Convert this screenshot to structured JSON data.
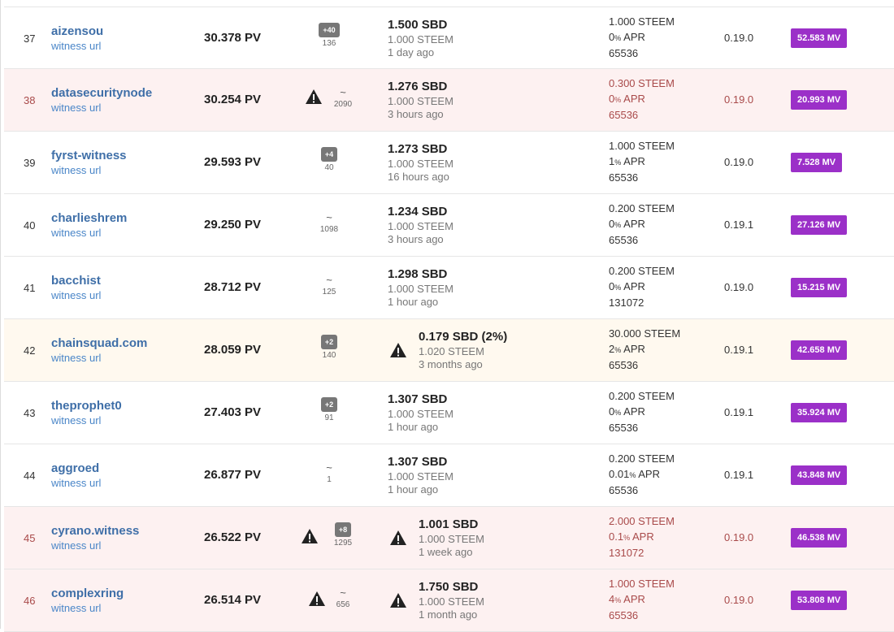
{
  "labels": {
    "witness_url": "witness url",
    "apr": "APR",
    "pct": "%"
  },
  "rows": [
    {
      "rank": "37",
      "name": "aizensou",
      "votes": "30.378 PV",
      "missed_badge": "+40",
      "missed_tilde": "",
      "missed_count": "136",
      "price": "1.500 SBD",
      "price_sub": "1.000 STEEM",
      "price_time": "1 day ago",
      "fee_steem": "1.000 STEEM",
      "apr": "0",
      "block_size": "65536",
      "version": "0.19.0",
      "mvests": "52.583 MV"
    },
    {
      "rank": "38",
      "name": "datasecuritynode",
      "votes": "30.254 PV",
      "missed_badge": "",
      "missed_tilde": "~",
      "missed_count": "2090",
      "price": "1.276 SBD",
      "price_sub": "1.000 STEEM",
      "price_time": "3 hours ago",
      "fee_steem": "0.300 STEEM",
      "apr": "0",
      "block_size": "65536",
      "version": "0.19.0",
      "mvests": "20.993 MV"
    },
    {
      "rank": "39",
      "name": "fyrst-witness",
      "votes": "29.593 PV",
      "missed_badge": "+4",
      "missed_tilde": "",
      "missed_count": "40",
      "price": "1.273 SBD",
      "price_sub": "1.000 STEEM",
      "price_time": "16 hours ago",
      "fee_steem": "1.000 STEEM",
      "apr": "1",
      "block_size": "65536",
      "version": "0.19.0",
      "mvests": "7.528 MV"
    },
    {
      "rank": "40",
      "name": "charlieshrem",
      "votes": "29.250 PV",
      "missed_badge": "",
      "missed_tilde": "~",
      "missed_count": "1098",
      "price": "1.234 SBD",
      "price_sub": "1.000 STEEM",
      "price_time": "3 hours ago",
      "fee_steem": "0.200 STEEM",
      "apr": "0",
      "block_size": "65536",
      "version": "0.19.1",
      "mvests": "27.126 MV"
    },
    {
      "rank": "41",
      "name": "bacchist",
      "votes": "28.712 PV",
      "missed_badge": "",
      "missed_tilde": "~",
      "missed_count": "125",
      "price": "1.298 SBD",
      "price_sub": "1.000 STEEM",
      "price_time": "1 hour ago",
      "fee_steem": "0.200 STEEM",
      "apr": "0",
      "block_size": "131072",
      "version": "0.19.0",
      "mvests": "15.215 MV"
    },
    {
      "rank": "42",
      "name": "chainsquad.com",
      "votes": "28.059 PV",
      "missed_badge": "+2",
      "missed_tilde": "",
      "missed_count": "140",
      "price": "0.179 SBD (2%)",
      "price_sub": "1.020 STEEM",
      "price_time": "3 months ago",
      "fee_steem": "30.000 STEEM",
      "apr": "2",
      "block_size": "65536",
      "version": "0.19.1",
      "mvests": "42.658 MV"
    },
    {
      "rank": "43",
      "name": "theprophet0",
      "votes": "27.403 PV",
      "missed_badge": "+2",
      "missed_tilde": "",
      "missed_count": "91",
      "price": "1.307 SBD",
      "price_sub": "1.000 STEEM",
      "price_time": "1 hour ago",
      "fee_steem": "0.200 STEEM",
      "apr": "0",
      "block_size": "65536",
      "version": "0.19.1",
      "mvests": "35.924 MV"
    },
    {
      "rank": "44",
      "name": "aggroed",
      "votes": "26.877 PV",
      "missed_badge": "",
      "missed_tilde": "~",
      "missed_count": "1",
      "price": "1.307 SBD",
      "price_sub": "1.000 STEEM",
      "price_time": "1 hour ago",
      "fee_steem": "0.200 STEEM",
      "apr": "0.01",
      "block_size": "65536",
      "version": "0.19.1",
      "mvests": "43.848 MV"
    },
    {
      "rank": "45",
      "name": "cyrano.witness",
      "votes": "26.522 PV",
      "missed_badge": "+8",
      "missed_tilde": "",
      "missed_count": "1295",
      "price": "1.001 SBD",
      "price_sub": "1.000 STEEM",
      "price_time": "1 week ago",
      "fee_steem": "2.000 STEEM",
      "apr": "0.1",
      "block_size": "131072",
      "version": "0.19.0",
      "mvests": "46.538 MV"
    },
    {
      "rank": "46",
      "name": "complexring",
      "votes": "26.514 PV",
      "missed_badge": "",
      "missed_tilde": "~",
      "missed_count": "656",
      "price": "1.750 SBD",
      "price_sub": "1.000 STEEM",
      "price_time": "1 month ago",
      "fee_steem": "1.000 STEEM",
      "apr": "4",
      "block_size": "65536",
      "version": "0.19.0",
      "mvests": "53.808 MV"
    }
  ]
}
